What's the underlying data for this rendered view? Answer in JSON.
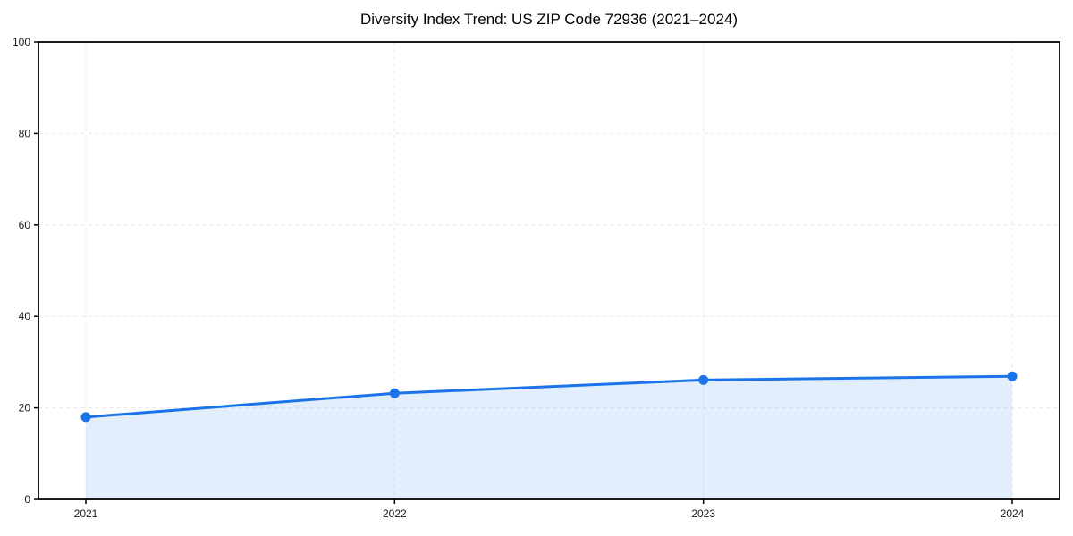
{
  "figure": {
    "background": "#ffffff"
  },
  "chart_data": {
    "type": "line",
    "title": "Diversity Index Trend: US ZIP Code 72936 (2021–2024)",
    "categories": [
      "2021",
      "2022",
      "2023",
      "2024"
    ],
    "series": [
      {
        "name": "Diversity Index",
        "values": [
          18.0,
          23.2,
          26.1,
          26.9
        ]
      }
    ],
    "xlabel": "",
    "ylabel": "",
    "ylim": [
      0,
      100
    ],
    "yticks": [
      0,
      20,
      40,
      60,
      80,
      100
    ],
    "grid": true,
    "grid_style": "dashed",
    "area_fill": true,
    "markers": true,
    "legend_position": "none",
    "colors": {
      "line": "#1a73e8",
      "marker": "#1a73e8",
      "fill": "rgba(26,115,232,0.12)",
      "grid": "#e7e7e7",
      "spine": "#000000",
      "tick_label": "#1a1a1a",
      "title": "#000000"
    }
  }
}
